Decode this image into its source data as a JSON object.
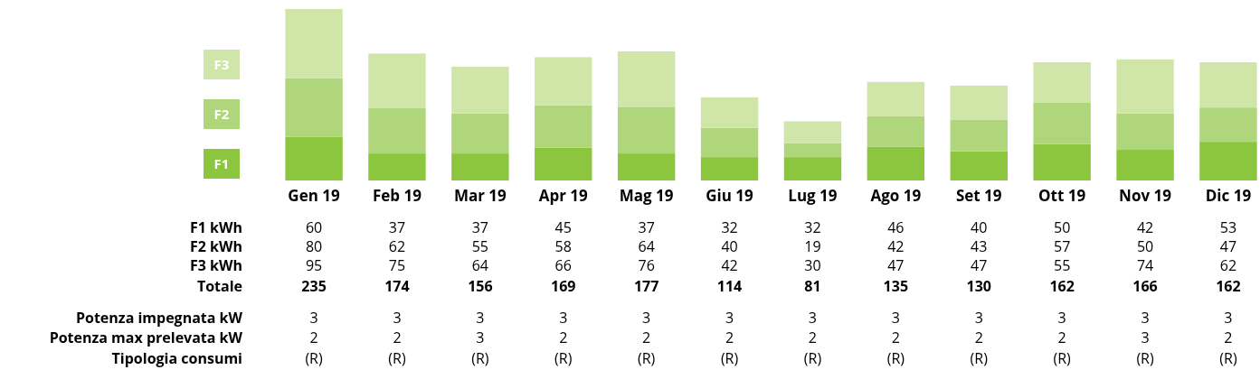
{
  "chart_data": {
    "type": "bar",
    "stacked": true,
    "legend": "left",
    "data_labels": true,
    "categories": [
      "Gen 19",
      "Feb 19",
      "Mar 19",
      "Apr 19",
      "Mag 19",
      "Giu 19",
      "Lug 19",
      "Ago 19",
      "Set 19",
      "Ott 19",
      "Nov 19",
      "Dic 19"
    ],
    "series": [
      {
        "name": "F1",
        "color": "#8cc63f",
        "values": [
          60,
          37,
          37,
          45,
          37,
          32,
          32,
          46,
          40,
          50,
          42,
          53
        ]
      },
      {
        "name": "F2",
        "color": "#afd67a",
        "values": [
          80,
          62,
          55,
          58,
          64,
          40,
          19,
          42,
          43,
          57,
          50,
          47
        ]
      },
      {
        "name": "F3",
        "color": "#cfe6a8",
        "values": [
          95,
          75,
          64,
          66,
          76,
          42,
          30,
          47,
          47,
          55,
          74,
          62
        ]
      }
    ],
    "annotations": [
      "F1 kWh",
      "F2 kWh",
      "F3 kWh",
      "Totale",
      "235",
      "174",
      "156",
      "169",
      "177",
      "114",
      "81",
      "135",
      "130",
      "162",
      "166",
      "162",
      "Potenza impegnata kW",
      "3",
      "3",
      "3",
      "3",
      "3",
      "3",
      "3",
      "3",
      "3",
      "3",
      "3",
      "3",
      "Potenza max prelevata kW",
      "2",
      "2",
      "3",
      "2",
      "2",
      "2",
      "2",
      "2",
      "2",
      "2",
      "3",
      "2",
      "Tipologia consumi",
      "(R)",
      "(R)",
      "(R)",
      "(R)",
      "(R)",
      "(R)",
      "(R)",
      "(R)",
      "(R)",
      "(R)",
      "(R)",
      "(R)"
    ]
  }
}
